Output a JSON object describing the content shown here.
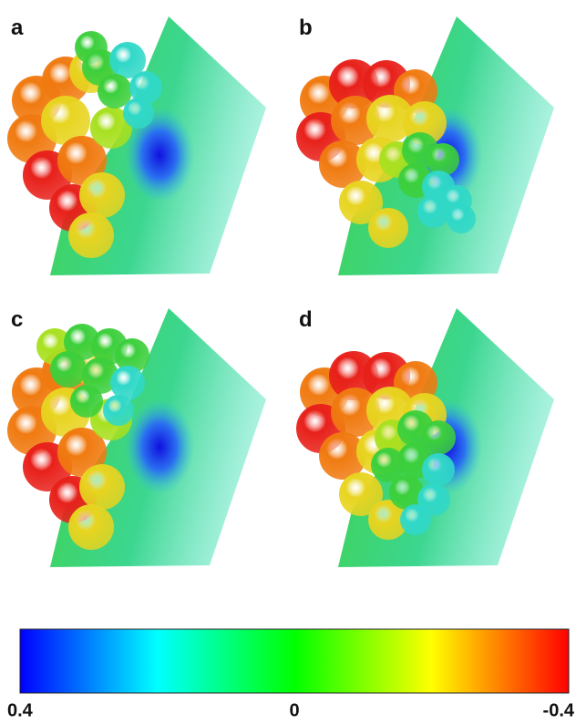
{
  "panels": [
    {
      "label": "a"
    },
    {
      "label": "b"
    },
    {
      "label": "c"
    },
    {
      "label": "d"
    }
  ],
  "colorbar": {
    "lim": [
      0.4,
      -0.4
    ],
    "ticks": [
      0.4,
      0,
      -0.4
    ],
    "colors": [
      "#0000ff",
      "#00ffff",
      "#00ff00",
      "#ffff00",
      "#ff0000"
    ]
  }
}
